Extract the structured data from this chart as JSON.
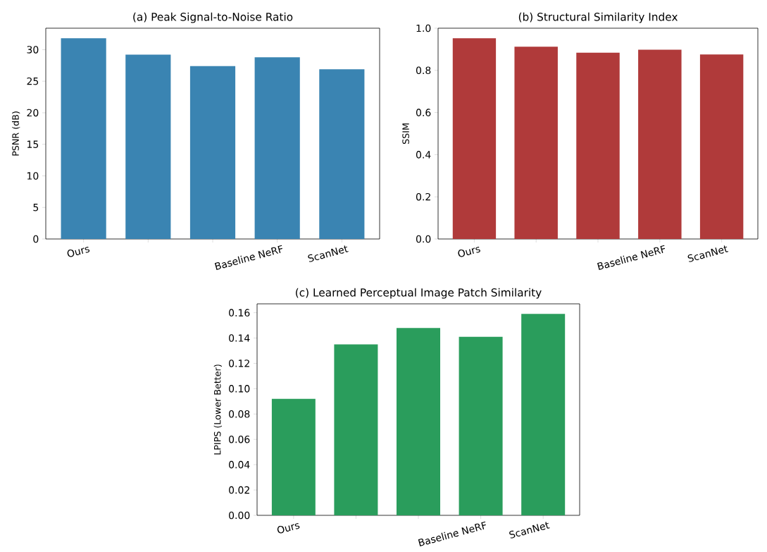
{
  "chart_data": [
    {
      "type": "bar",
      "title": "(a) Peak Signal-to-Noise Ratio",
      "ylabel": "PSNR (dB)",
      "categories": [
        "Ours",
        null,
        null,
        "Baseline NeRF",
        "ScanNet"
      ],
      "values": [
        31.8,
        29.2,
        27.4,
        28.8,
        26.9
      ],
      "color": "#3a84b2",
      "ylim": [
        0,
        33.4
      ],
      "yticks": [
        0,
        5,
        10,
        15,
        20,
        25,
        30
      ]
    },
    {
      "type": "bar",
      "title": "(b) Structural Similarity Index",
      "ylabel": "SSIM",
      "categories": [
        "Ours",
        null,
        null,
        "Baseline NeRF",
        "ScanNet"
      ],
      "values": [
        0.952,
        0.912,
        0.884,
        0.898,
        0.875
      ],
      "color": "#b03a3a",
      "ylim": [
        0,
        1.0
      ],
      "yticks": [
        {
          "value": 0,
          "label": "0.0"
        },
        0.2,
        0.4,
        0.6,
        0.8,
        {
          "value": 1,
          "label": "1.0"
        }
      ]
    },
    {
      "type": "bar",
      "title": "(c) Learned Perceptual Image Patch Similarity",
      "ylabel": "LPIPS (Lower Better)",
      "categories": [
        "Ours",
        null,
        null,
        "Baseline NeRF",
        "ScanNet"
      ],
      "values": [
        0.092,
        0.135,
        0.148,
        0.141,
        0.159
      ],
      "color": "#2a9d5c",
      "ylim": [
        0,
        0.167
      ],
      "yticks": [
        {
          "value": 0,
          "label": "0.00"
        },
        0.02,
        0.04,
        0.06,
        0.08,
        {
          "value": 0.1,
          "label": "0.10"
        },
        0.12,
        0.14,
        0.16
      ]
    }
  ]
}
